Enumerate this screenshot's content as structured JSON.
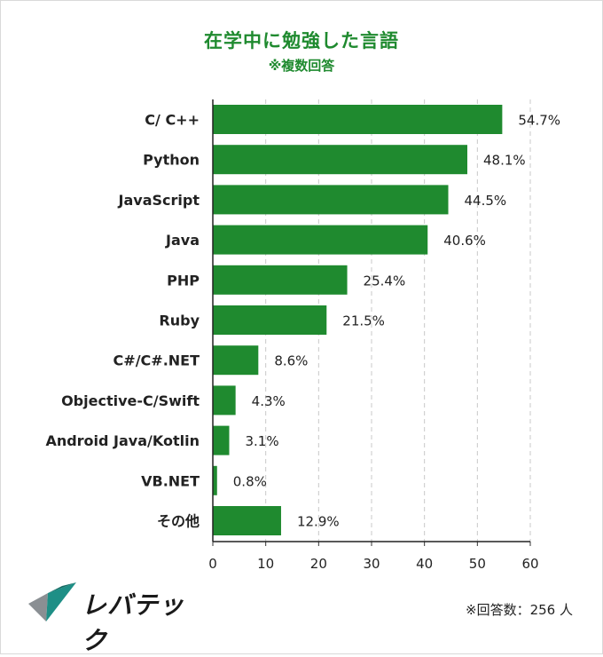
{
  "chart_data": {
    "type": "bar",
    "orientation": "horizontal",
    "title": "在学中に勉強した言語",
    "subtitle": "※複数回答",
    "categories": [
      "C/ C++",
      "Python",
      "JavaScript",
      "Java",
      "PHP",
      "Ruby",
      "C#/C#.NET",
      "Objective-C/Swift",
      "Android Java/Kotlin",
      "VB.NET",
      "その他"
    ],
    "values": [
      54.7,
      48.1,
      44.5,
      40.6,
      25.4,
      21.5,
      8.6,
      4.3,
      3.1,
      0.8,
      12.9
    ],
    "value_labels": [
      "54.7%",
      "48.1%",
      "44.5%",
      "40.6%",
      "25.4%",
      "21.5%",
      "8.6%",
      "4.3%",
      "3.1%",
      "0.8%",
      "12.9%"
    ],
    "xlim": [
      0,
      60
    ],
    "xticks": [
      0,
      10,
      20,
      30,
      40,
      50,
      60
    ],
    "grid": "vertical dashed",
    "bar_color": "#1f8a2f"
  },
  "logo": {
    "text": "レバテック",
    "icon": "levtech-logo-mark-icon"
  },
  "footnote": "※回答数：256 人",
  "colors": {
    "accent": "#1f8a2f",
    "logo_teal": "#1e8f86",
    "logo_gray": "#8a8f93"
  }
}
